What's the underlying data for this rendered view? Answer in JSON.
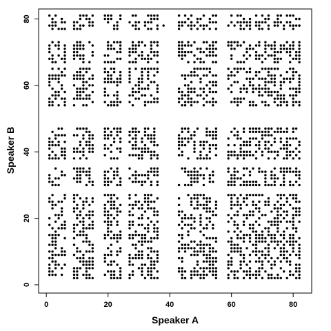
{
  "chart_data": {
    "type": "scatter",
    "title": "",
    "xlabel": "Speaker A",
    "ylabel": "Speaker B",
    "xlim": [
      -2.5,
      86
    ],
    "ylim": [
      -2.5,
      83
    ],
    "xticks": [
      0,
      20,
      40,
      60,
      80
    ],
    "yticks": [
      0,
      20,
      40,
      60,
      80
    ],
    "xtick_labels": [
      "0",
      "20",
      "40",
      "60",
      "80"
    ],
    "ytick_labels": [
      "0",
      "20",
      "40",
      "60",
      "80"
    ],
    "marker": "filled circle",
    "marker_color": "#000000",
    "grid": false,
    "legend": "none",
    "description_of_points": "Speaker-pair recurrence plot: discrete cells at integer (Speaker A, Speaker B) positions, clustered into blocks",
    "blocks": {
      "x": [
        [
          1,
          6
        ],
        [
          9,
          15
        ],
        [
          19,
          24
        ],
        [
          27,
          36
        ],
        [
          43,
          49
        ],
        [
          50,
          55
        ],
        [
          59,
          64
        ],
        [
          65,
          73
        ],
        [
          74,
          82
        ]
      ],
      "y": [
        [
          2,
          14
        ],
        [
          15,
          27
        ],
        [
          30,
          35
        ],
        [
          38,
          47
        ],
        [
          54,
          65
        ],
        [
          67,
          73
        ],
        [
          77,
          81
        ]
      ]
    },
    "sparse_cells": [
      {
        "x": 1,
        "y": 54
      },
      {
        "x": 2,
        "y": 55
      },
      {
        "x": 3,
        "y": 56
      },
      {
        "x": 4,
        "y": 57
      },
      {
        "x": 12,
        "y": 78
      },
      {
        "x": 14,
        "y": 79
      },
      {
        "x": 21,
        "y": 81
      },
      {
        "x": 38,
        "y": 78
      },
      {
        "x": 45,
        "y": 81
      },
      {
        "x": 47,
        "y": 79
      },
      {
        "x": 80,
        "y": 78
      },
      {
        "x": 82,
        "y": 78
      }
    ]
  }
}
